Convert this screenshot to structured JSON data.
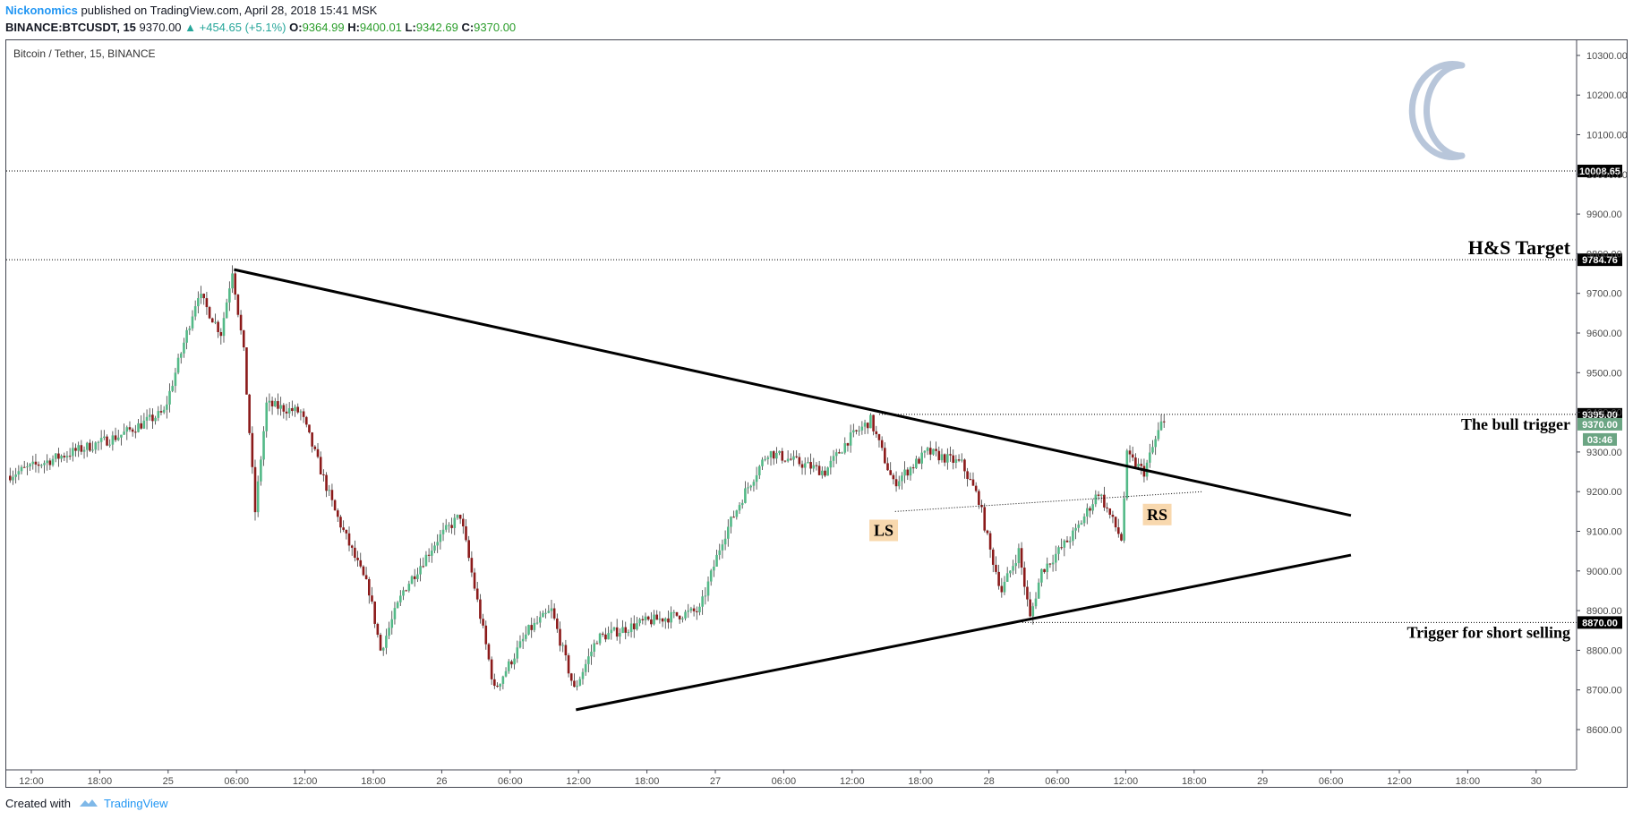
{
  "header": {
    "author": "Nickonomics",
    "published": "published on TradingView.com, April 28, 2018 15:41 MSK",
    "symbol": "BINANCE:BTCUSDT, 15",
    "last": "9370.00",
    "change": "▲ +454.65 (+5.1%)",
    "o_label": "O:",
    "o_value": "9364.99",
    "h_label": "H:",
    "h_value": "9400.01",
    "l_label": "L:",
    "l_value": "9342.69",
    "c_label": "C:",
    "c_value": "9370.00"
  },
  "footer": {
    "created_with": "Created with",
    "brand": "TradingView"
  },
  "chart_data": {
    "type": "candlestick",
    "title": "Bitcoin / Tether, 15, BINANCE",
    "ylim": [
      8500,
      10330
    ],
    "y_ticks": [
      "8600.00",
      "8700.00",
      "8800.00",
      "8900.00",
      "9000.00",
      "9100.00",
      "9200.00",
      "9300.00",
      "9400.00",
      "9500.00",
      "9600.00",
      "9700.00",
      "9800.00",
      "9900.00",
      "10000.00",
      "10100.00",
      "10200.00",
      "10300.00"
    ],
    "x_ticks": [
      "12:00",
      "18:00",
      "25",
      "06:00",
      "12:00",
      "18:00",
      "26",
      "06:00",
      "12:00",
      "18:00",
      "27",
      "06:00",
      "12:00",
      "18:00",
      "28",
      "06:00",
      "12:00",
      "18:00",
      "29",
      "06:00",
      "12:00",
      "18:00",
      "30"
    ],
    "x_range_hours": [
      "2018-04-24 10:15",
      "2018-04-30 03:30"
    ],
    "price_path": [
      [
        "2018-04-24 10:15",
        9240
      ],
      [
        "2018-04-24 15:00",
        9290
      ],
      [
        "2018-04-24 20:00",
        9340
      ],
      [
        "2018-04-25 00:00",
        9400
      ],
      [
        "2018-04-25 03:00",
        9700
      ],
      [
        "2018-04-25 05:00",
        9600
      ],
      [
        "2018-04-25 06:00",
        9760
      ],
      [
        "2018-04-25 07:00",
        9550
      ],
      [
        "2018-04-25 08:00",
        9150
      ],
      [
        "2018-04-25 09:00",
        9420
      ],
      [
        "2018-04-25 12:00",
        9400
      ],
      [
        "2018-04-25 15:00",
        9150
      ],
      [
        "2018-04-25 18:00",
        8950
      ],
      [
        "2018-04-25 19:00",
        8800
      ],
      [
        "2018-04-25 21:00",
        8950
      ],
      [
        "2018-04-26 00:00",
        9080
      ],
      [
        "2018-04-26 02:00",
        9140
      ],
      [
        "2018-04-26 04:00",
        8850
      ],
      [
        "2018-04-26 05:00",
        8700
      ],
      [
        "2018-04-26 08:00",
        8850
      ],
      [
        "2018-04-26 10:00",
        8900
      ],
      [
        "2018-04-26 12:00",
        8700
      ],
      [
        "2018-04-26 14:00",
        8830
      ],
      [
        "2018-04-26 18:00",
        8870
      ],
      [
        "2018-04-26 23:00",
        8900
      ],
      [
        "2018-04-27 01:00",
        9080
      ],
      [
        "2018-04-27 03:00",
        9200
      ],
      [
        "2018-04-27 05:00",
        9300
      ],
      [
        "2018-04-27 10:00",
        9250
      ],
      [
        "2018-04-27 12:00",
        9330
      ],
      [
        "2018-04-27 14:00",
        9380
      ],
      [
        "2018-04-27 16:00",
        9220
      ],
      [
        "2018-04-27 19:00",
        9300
      ],
      [
        "2018-04-27 22:00",
        9270
      ],
      [
        "2018-04-27 23:30",
        9180
      ],
      [
        "2018-04-28 00:30",
        9050
      ],
      [
        "2018-04-28 01:30",
        8950
      ],
      [
        "2018-04-28 03:00",
        9050
      ],
      [
        "2018-04-28 04:00",
        8880
      ],
      [
        "2018-04-28 05:00",
        9000
      ],
      [
        "2018-04-28 08:00",
        9100
      ],
      [
        "2018-04-28 10:00",
        9200
      ],
      [
        "2018-04-28 12:00",
        9080
      ],
      [
        "2018-04-28 12:30",
        9290
      ],
      [
        "2018-04-28 14:00",
        9250
      ],
      [
        "2018-04-28 15:30",
        9370
      ]
    ],
    "trendlines": [
      {
        "name": "upper-trendline",
        "from": [
          "2018-04-25 06:00",
          9760
        ],
        "to": [
          "2018-04-29 08:00",
          9140
        ]
      },
      {
        "name": "lower-trendline",
        "from": [
          "2018-04-26 12:00",
          8650
        ],
        "to": [
          "2018-04-29 08:00",
          9040
        ]
      },
      {
        "name": "neckline",
        "from": [
          "2018-04-27 16:00",
          9150
        ],
        "to": [
          "2018-04-28 19:00",
          9200
        ]
      }
    ],
    "horizontal_levels": [
      {
        "value": 10008.65,
        "label": "10008.65"
      },
      {
        "value": 9784.76,
        "label": "9784.76"
      },
      {
        "value": 9395.0,
        "label": "9395.00"
      },
      {
        "value": 8870.0,
        "label": "8870.00"
      }
    ],
    "price_badges": [
      {
        "value": 9370,
        "label": "9370.00"
      },
      {
        "value": 9330,
        "label": "03:46"
      }
    ],
    "annotations": [
      {
        "text": "H&S Target",
        "at": 9784.76
      },
      {
        "text": "The bull trigger",
        "at": 9395.0
      },
      {
        "text": "Trigger for short selling",
        "at": 8870.0
      },
      {
        "text": "LS",
        "x": "2018-04-27 15:00",
        "y": 9100
      },
      {
        "text": "RS",
        "x": "2018-04-28 15:00",
        "y": 9140
      }
    ],
    "colors": {
      "up": "#53b987",
      "down": "#8b1a1a",
      "trend": "#000000",
      "badge_dark": "#000000",
      "badge_green": "#6ba583",
      "label_bg": "#f8d8ae",
      "logo": "#b8c6da"
    }
  }
}
